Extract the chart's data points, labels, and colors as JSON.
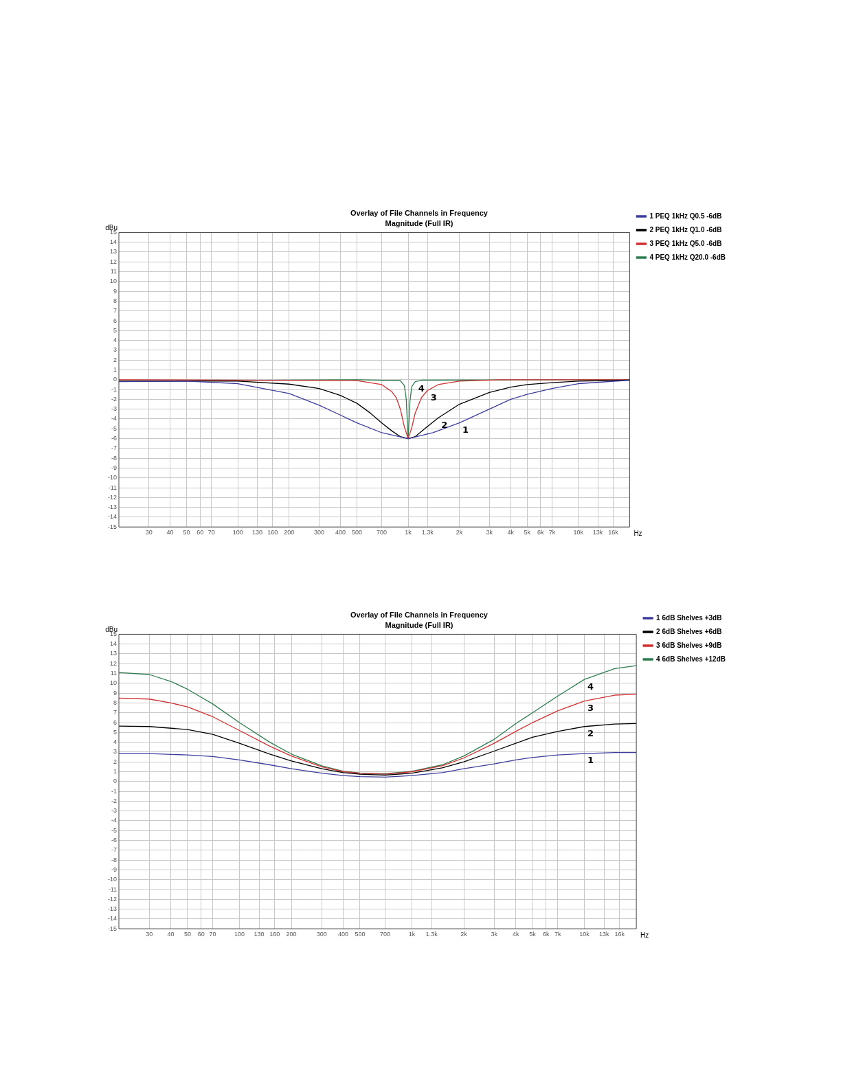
{
  "chart_data": [
    {
      "type": "line",
      "title": "Overlay of File Channels in Frequency",
      "subtitle": "Magnitude (Full IR)",
      "xlabel": "Hz",
      "ylabel": "dBu",
      "log": "x",
      "grid": true,
      "legend": "right",
      "marker": "none",
      "line_style": "solid",
      "xlim": [
        20,
        20000
      ],
      "xticks": [
        30,
        40,
        50,
        60,
        70,
        100,
        130,
        160,
        200,
        300,
        400,
        500,
        700,
        {
          "value": 1000,
          "label": "1k"
        },
        {
          "value": 1300,
          "label": "1.3k"
        },
        {
          "value": 2000,
          "label": "2k"
        },
        {
          "value": 3000,
          "label": "3k"
        },
        {
          "value": 4000,
          "label": "4k"
        },
        {
          "value": 5000,
          "label": "5k"
        },
        {
          "value": 6000,
          "label": "6k"
        },
        {
          "value": 7000,
          "label": "7k"
        },
        {
          "value": 10000,
          "label": "10k"
        },
        {
          "value": 13000,
          "label": "13k"
        },
        {
          "value": 16000,
          "label": "16k"
        }
      ],
      "ylim": [
        -15,
        15
      ],
      "yticks": [
        -15,
        -14,
        -13,
        -12,
        -11,
        -10,
        -9,
        -8,
        -7,
        -6,
        -5,
        -4,
        -3,
        -2,
        -1,
        0,
        1,
        2,
        3,
        4,
        5,
        6,
        7,
        8,
        9,
        10,
        11,
        12,
        13,
        14,
        15
      ],
      "series": [
        {
          "name": "1 PEQ 1kHz Q0.5 -6dB",
          "color": "#3c3c9c",
          "x": [
            20,
            50,
            100,
            200,
            300,
            400,
            500,
            700,
            1000,
            1400,
            2000,
            3000,
            4000,
            5000,
            7000,
            10000,
            20000
          ],
          "values": [
            -0.2,
            -0.15,
            -0.4,
            -1.4,
            -2.6,
            -3.6,
            -4.4,
            -5.4,
            -6,
            -5.4,
            -4.4,
            -3,
            -2,
            -1.5,
            -0.9,
            -0.4,
            -0.05
          ]
        },
        {
          "name": "2 PEQ 1kHz Q1.0 -6dB",
          "color": "#000000",
          "x": [
            20,
            100,
            200,
            300,
            400,
            500,
            600,
            700,
            800,
            900,
            1000,
            1100,
            1250,
            1500,
            2000,
            3000,
            4000,
            5000,
            7000,
            10000,
            20000
          ],
          "values": [
            -0.15,
            -0.15,
            -0.45,
            -0.9,
            -1.6,
            -2.4,
            -3.4,
            -4.4,
            -5.2,
            -5.8,
            -6,
            -5.8,
            -5,
            -3.9,
            -2.5,
            -1.3,
            -0.75,
            -0.5,
            -0.3,
            -0.15,
            -0.05
          ]
        },
        {
          "name": "3 PEQ 1kHz Q5.0 -6dB",
          "color": "#d03030",
          "x": [
            20,
            500,
            700,
            800,
            850,
            900,
            950,
            1000,
            1050,
            1100,
            1200,
            1300,
            1500,
            2000,
            3500,
            20000
          ],
          "values": [
            0,
            -0.1,
            -0.5,
            -1.2,
            -1.8,
            -3,
            -4.8,
            -6,
            -4.9,
            -3.4,
            -1.8,
            -1.1,
            -0.5,
            -0.15,
            0,
            0
          ]
        },
        {
          "name": "4 PEQ 1kHz Q20.0 -6dB",
          "color": "#2e7d4f",
          "x": [
            20,
            500,
            900,
            950,
            975,
            1000,
            1025,
            1050,
            1100,
            1200,
            20000
          ],
          "values": [
            -0.15,
            0,
            -0.1,
            -0.6,
            -2,
            -6,
            -2.2,
            -0.7,
            -0.2,
            -0.05,
            0
          ]
        }
      ],
      "annotations": [
        {
          "text": "4",
          "x": 1100,
          "y": -0.2
        },
        {
          "text": "3",
          "x": 1300,
          "y": -1.1
        },
        {
          "text": "2",
          "x": 1500,
          "y": -3.9
        },
        {
          "text": "1",
          "x": 2000,
          "y": -4.4
        }
      ]
    },
    {
      "type": "line",
      "title": "Overlay of File Channels in Frequency",
      "subtitle": "Magnitude (Full IR)",
      "xlabel": "Hz",
      "ylabel": "dBu",
      "log": "x",
      "grid": true,
      "legend": "right",
      "marker": "none",
      "line_style": "solid",
      "xlim": [
        20,
        20000
      ],
      "xticks": [
        30,
        40,
        50,
        60,
        70,
        100,
        130,
        160,
        200,
        300,
        400,
        500,
        700,
        {
          "value": 1000,
          "label": "1k"
        },
        {
          "value": 1300,
          "label": "1.3k"
        },
        {
          "value": 2000,
          "label": "2k"
        },
        {
          "value": 3000,
          "label": "3k"
        },
        {
          "value": 4000,
          "label": "4k"
        },
        {
          "value": 5000,
          "label": "5k"
        },
        {
          "value": 6000,
          "label": "6k"
        },
        {
          "value": 7000,
          "label": "7k"
        },
        {
          "value": 10000,
          "label": "10k"
        },
        {
          "value": 13000,
          "label": "13k"
        },
        {
          "value": 16000,
          "label": "16k"
        }
      ],
      "ylim": [
        -15,
        15
      ],
      "yticks": [
        -15,
        -14,
        -13,
        -12,
        -11,
        -10,
        -9,
        -8,
        -7,
        -6,
        -5,
        -4,
        -3,
        -2,
        -1,
        0,
        1,
        2,
        3,
        4,
        5,
        6,
        7,
        8,
        9,
        10,
        11,
        12,
        13,
        14,
        15
      ],
      "series": [
        {
          "name": "1 6dB Shelves +3dB",
          "color": "#3c3c9c",
          "x": [
            20,
            30,
            50,
            70,
            100,
            150,
            200,
            300,
            400,
            500,
            700,
            1000,
            1500,
            2000,
            3000,
            4000,
            5000,
            7000,
            10000,
            15000,
            20000
          ],
          "values": [
            2.85,
            2.85,
            2.7,
            2.55,
            2.2,
            1.7,
            1.3,
            0.85,
            0.6,
            0.5,
            0.45,
            0.6,
            0.9,
            1.3,
            1.8,
            2.2,
            2.45,
            2.7,
            2.85,
            2.95,
            2.95
          ]
        },
        {
          "name": "2 6dB Shelves +6dB",
          "color": "#000000",
          "x": [
            20,
            30,
            50,
            70,
            100,
            150,
            200,
            300,
            400,
            500,
            700,
            1000,
            1500,
            2000,
            3000,
            4000,
            5000,
            7000,
            10000,
            15000,
            20000
          ],
          "values": [
            5.65,
            5.6,
            5.3,
            4.8,
            3.9,
            2.8,
            2.1,
            1.3,
            0.9,
            0.75,
            0.65,
            0.85,
            1.4,
            2,
            3.1,
            3.9,
            4.5,
            5.1,
            5.6,
            5.85,
            5.9
          ]
        },
        {
          "name": "3 6dB Shelves +9dB",
          "color": "#d03030",
          "x": [
            20,
            30,
            40,
            50,
            70,
            100,
            150,
            200,
            300,
            400,
            500,
            700,
            1000,
            1500,
            2000,
            3000,
            4000,
            5000,
            7000,
            10000,
            15000,
            20000
          ],
          "values": [
            8.5,
            8.4,
            8,
            7.6,
            6.6,
            5.2,
            3.6,
            2.6,
            1.5,
            1,
            0.85,
            0.75,
            1,
            1.6,
            2.4,
            3.9,
            5.1,
            6,
            7.2,
            8.2,
            8.8,
            8.9
          ]
        },
        {
          "name": "4 6dB Shelves +12dB",
          "color": "#2e7d4f",
          "x": [
            20,
            30,
            40,
            50,
            70,
            100,
            150,
            200,
            300,
            400,
            500,
            700,
            1000,
            1500,
            2000,
            3000,
            4000,
            5000,
            7000,
            10000,
            15000,
            20000
          ],
          "values": [
            11.1,
            10.9,
            10.2,
            9.4,
            7.9,
            6,
            4,
            2.8,
            1.6,
            1.05,
            0.85,
            0.8,
            1.05,
            1.7,
            2.6,
            4.3,
            5.9,
            7,
            8.7,
            10.4,
            11.5,
            11.8
          ]
        }
      ],
      "annotations": [
        {
          "text": "4",
          "x": 10000,
          "y": 10.4
        },
        {
          "text": "3",
          "x": 10000,
          "y": 8.2
        },
        {
          "text": "2",
          "x": 10000,
          "y": 5.6
        },
        {
          "text": "1",
          "x": 10000,
          "y": 2.85
        }
      ]
    }
  ]
}
